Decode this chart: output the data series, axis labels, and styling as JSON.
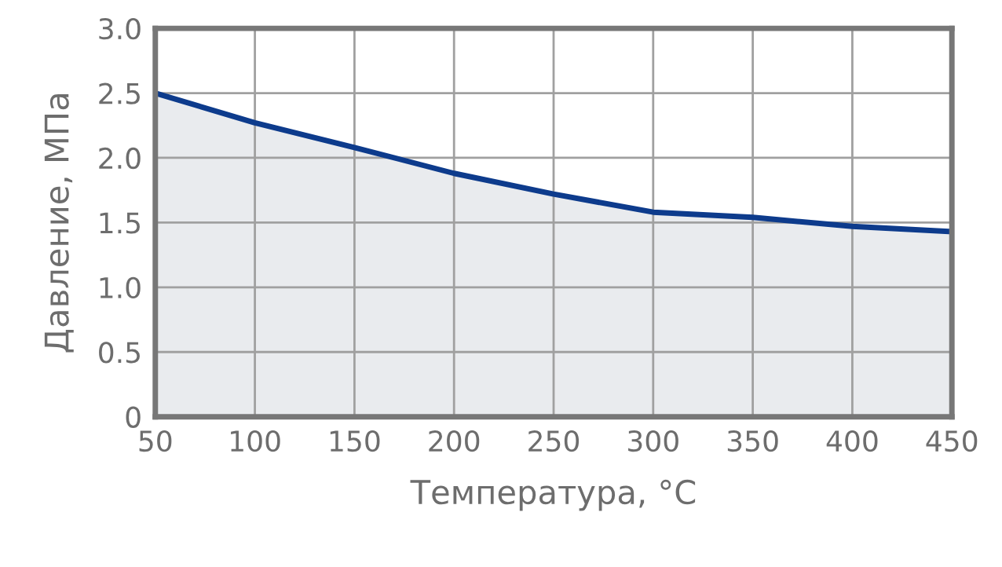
{
  "chart_data": {
    "type": "area",
    "xlabel": "Температура, °C",
    "ylabel": "Давление, МПа",
    "x": [
      50,
      100,
      150,
      200,
      250,
      300,
      350,
      400,
      450
    ],
    "series": [
      {
        "color": "#0d3b8c",
        "values": [
          2.5,
          2.27,
          2.08,
          1.88,
          1.72,
          1.58,
          1.54,
          1.47,
          1.43
        ]
      }
    ],
    "xlim": [
      50,
      450
    ],
    "ylim": [
      0,
      3
    ],
    "xticks": [
      50,
      100,
      150,
      200,
      250,
      300,
      350,
      400,
      450
    ],
    "yticks": [
      0,
      0.5,
      {
        "value": 1,
        "label": "1.0"
      },
      1.5,
      {
        "value": 2,
        "label": "2.0"
      },
      2.5,
      {
        "value": 3,
        "label": "3.0"
      }
    ],
    "grid": true
  }
}
